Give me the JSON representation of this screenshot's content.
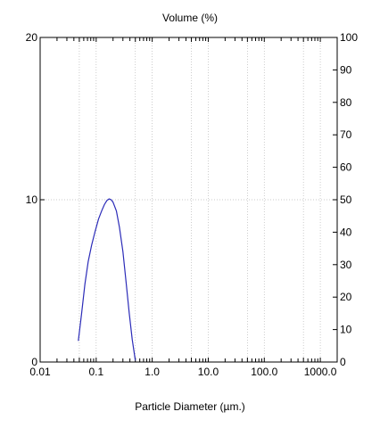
{
  "chart_data": {
    "type": "line",
    "title": "Volume (%)",
    "xlabel": "Particle Diameter (µm.)",
    "ylabel": "",
    "x_scale": "log",
    "xlim": [
      0.01,
      2000
    ],
    "ylim": [
      0,
      20
    ],
    "y2lim": [
      0,
      100
    ],
    "grid": true,
    "x_ticks": [
      {
        "value": 0.01,
        "label": "0.01"
      },
      {
        "value": 0.1,
        "label": "0.1"
      },
      {
        "value": 1,
        "label": "1.0"
      },
      {
        "value": 10,
        "label": "10.0"
      },
      {
        "value": 100,
        "label": "100.0"
      },
      {
        "value": 1000,
        "label": "1000.0"
      }
    ],
    "y_ticks": [
      {
        "value": 0,
        "label": "0"
      },
      {
        "value": 10,
        "label": "10"
      },
      {
        "value": 20,
        "label": "20"
      }
    ],
    "y2_ticks": [
      {
        "value": 0,
        "label": "0"
      },
      {
        "value": 10,
        "label": "10"
      },
      {
        "value": 20,
        "label": "20"
      },
      {
        "value": 30,
        "label": "30"
      },
      {
        "value": 40,
        "label": "40"
      },
      {
        "value": 50,
        "label": "50"
      },
      {
        "value": 60,
        "label": "60"
      },
      {
        "value": 70,
        "label": "70"
      },
      {
        "value": 80,
        "label": "80"
      },
      {
        "value": 90,
        "label": "90"
      },
      {
        "value": 100,
        "label": "100"
      }
    ],
    "series": [
      {
        "color": "#2b2bb8",
        "points": [
          [
            0.048,
            1.3
          ],
          [
            0.055,
            3.0
          ],
          [
            0.063,
            4.8
          ],
          [
            0.072,
            6.2
          ],
          [
            0.083,
            7.2
          ],
          [
            0.095,
            8.0
          ],
          [
            0.11,
            8.8
          ],
          [
            0.125,
            9.3
          ],
          [
            0.14,
            9.7
          ],
          [
            0.155,
            9.95
          ],
          [
            0.17,
            10.05
          ],
          [
            0.185,
            10.0
          ],
          [
            0.2,
            9.85
          ],
          [
            0.23,
            9.3
          ],
          [
            0.26,
            8.3
          ],
          [
            0.3,
            6.8
          ],
          [
            0.34,
            5.0
          ],
          [
            0.39,
            3.0
          ],
          [
            0.44,
            1.4
          ],
          [
            0.5,
            0.1
          ]
        ]
      }
    ]
  }
}
